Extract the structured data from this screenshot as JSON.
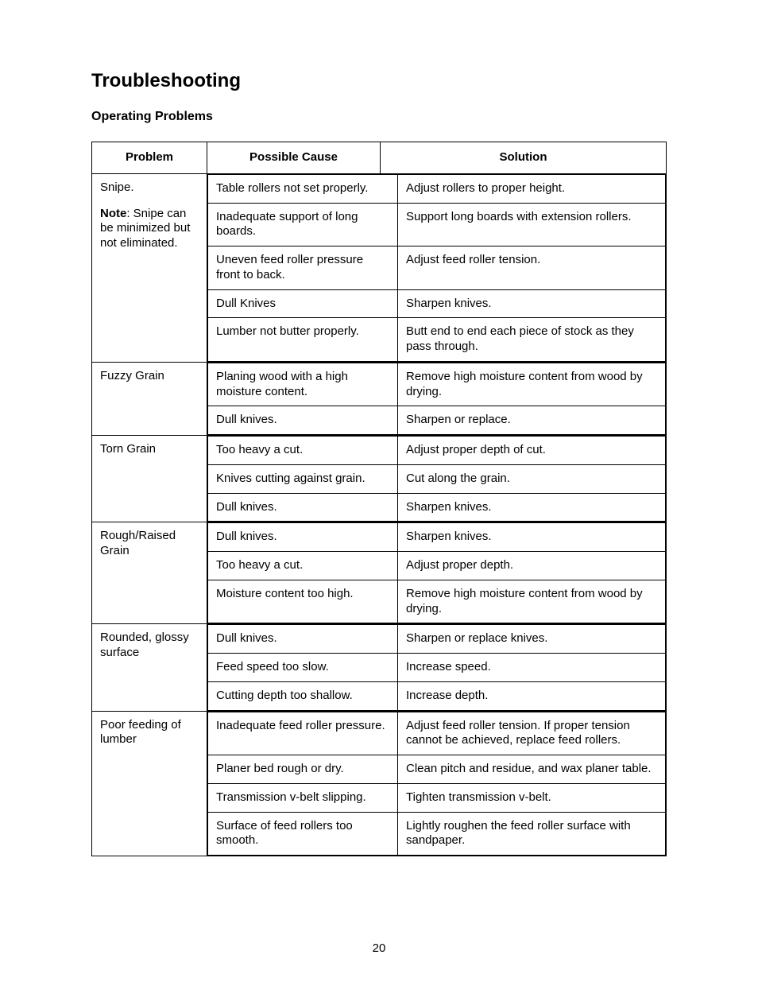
{
  "page": {
    "number": "20",
    "title": "Troubleshooting",
    "subtitle": "Operating Problems"
  },
  "headers": {
    "problem": "Problem",
    "cause": "Possible Cause",
    "solution": "Solution"
  },
  "rows": [
    {
      "problem_main": "Snipe.",
      "problem_note_label": "Note",
      "problem_note_text": ": Snipe can be minimized but not eliminated.",
      "pairs": [
        {
          "cause": "Table rollers not set properly.",
          "solution": "Adjust rollers to proper  height."
        },
        {
          "cause": "Inadequate support of long boards.",
          "solution": "Support long boards with extension rollers."
        },
        {
          "cause": "Uneven feed roller pressure front to back.",
          "solution": "Adjust feed roller tension."
        },
        {
          "cause": "Dull Knives",
          "solution": "Sharpen knives."
        },
        {
          "cause": "Lumber not butter properly.",
          "solution": "Butt end to end each piece of stock as they pass through."
        }
      ]
    },
    {
      "problem_main": "Fuzzy Grain",
      "pairs": [
        {
          "cause": "Planing wood with a high moisture content.",
          "solution": "Remove high moisture content from wood by drying."
        },
        {
          "cause": "Dull knives.",
          "solution": "Sharpen or replace."
        }
      ]
    },
    {
      "problem_main": "Torn Grain",
      "pairs": [
        {
          "cause": "Too heavy a cut.",
          "solution": "Adjust proper depth of cut."
        },
        {
          "cause": "Knives cutting against grain.",
          "solution": "Cut along the grain."
        },
        {
          "cause": "Dull knives.",
          "solution": "Sharpen knives."
        }
      ]
    },
    {
      "problem_main": "Rough/Raised Grain",
      "pairs": [
        {
          "cause": "Dull knives.",
          "solution": "Sharpen knives."
        },
        {
          "cause": "Too heavy a cut.",
          "solution": "Adjust proper depth."
        },
        {
          "cause": "Moisture content too high.",
          "solution": "Remove high moisture content from wood by drying."
        }
      ]
    },
    {
      "problem_main": "Rounded, glossy surface",
      "pairs": [
        {
          "cause": "Dull knives.",
          "solution": "Sharpen or replace knives."
        },
        {
          "cause": "Feed speed too slow.",
          "solution": "Increase speed."
        },
        {
          "cause": "Cutting depth too shallow.",
          "solution": "Increase depth."
        }
      ]
    },
    {
      "problem_main": "Poor feeding of lumber",
      "pairs": [
        {
          "cause": "Inadequate feed roller pressure.",
          "solution": "Adjust feed roller tension. If proper tension cannot be achieved, replace feed rollers."
        },
        {
          "cause": "Planer bed rough or dry.",
          "solution": "Clean pitch and residue, and wax planer table."
        },
        {
          "cause": "Transmission v-belt slipping.",
          "solution": "Tighten transmission v-belt."
        },
        {
          "cause": "Surface of feed rollers too smooth.",
          "solution": "Lightly roughen the feed roller surface with sandpaper."
        }
      ]
    }
  ]
}
